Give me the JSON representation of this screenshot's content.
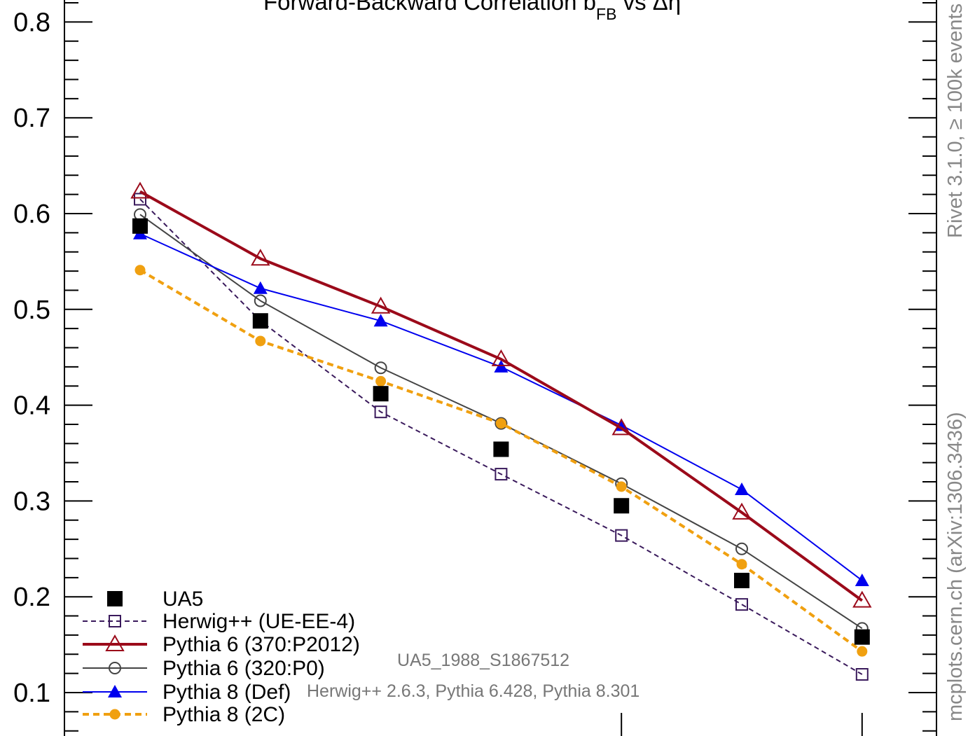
{
  "chart_data": {
    "type": "line",
    "title_main": "Forward-Backward Correlation b",
    "title_sub": "FB",
    "title_tail": " vs Δη",
    "ylim": [
      0.05,
      0.822
    ],
    "xlim": [
      -0.45,
      6.45
    ],
    "y_ticks": [
      "0.1",
      "0.2",
      "0.3",
      "0.4",
      "0.5",
      "0.6",
      "0.7",
      "0.8"
    ],
    "x": [
      0,
      1,
      2,
      3,
      4,
      5,
      6
    ],
    "series": [
      {
        "name": "UA5",
        "marker": "filled-square",
        "line": "none",
        "color": "#000000",
        "values": [
          0.587,
          0.488,
          0.412,
          0.354,
          0.295,
          0.217,
          0.158
        ]
      },
      {
        "name": "Herwig++ (UE-EE-4)",
        "marker": "open-square",
        "line": "dashed",
        "color": "#3a1a5c",
        "values": [
          0.615,
          0.488,
          0.393,
          0.328,
          0.264,
          0.192,
          0.119
        ]
      },
      {
        "name": "Pythia 6 (370:P2012)",
        "marker": "open-triangle",
        "line": "solid-thick",
        "color": "#9b0a1a",
        "values": [
          0.623,
          0.553,
          0.503,
          0.448,
          0.376,
          0.288,
          0.196
        ]
      },
      {
        "name": "Pythia 6 (320:P0)",
        "marker": "open-circle",
        "line": "solid",
        "color": "#444444",
        "values": [
          0.599,
          0.509,
          0.439,
          0.381,
          0.318,
          0.25,
          0.167
        ]
      },
      {
        "name": "Pythia 8 (Def)",
        "marker": "filled-triangle",
        "line": "solid",
        "color": "#0000ee",
        "values": [
          0.579,
          0.522,
          0.488,
          0.44,
          0.379,
          0.312,
          0.217
        ]
      },
      {
        "name": "Pythia 8 (2C)",
        "marker": "filled-circle",
        "line": "dashed-thick",
        "color": "#f0a010",
        "values": [
          0.541,
          0.467,
          0.425,
          0.381,
          0.315,
          0.234,
          0.143
        ]
      }
    ],
    "legend_position": "bottom-left",
    "annotation_1": "UA5_1988_S1867512",
    "annotation_2": "Herwig++ 2.6.3, Pythia 6.428, Pythia 8.301",
    "side_label_top": "Rivet 3.1.0, ≥ 100k events",
    "side_label_bottom": "mcplots.cern.ch (arXiv:1306.3436)"
  }
}
